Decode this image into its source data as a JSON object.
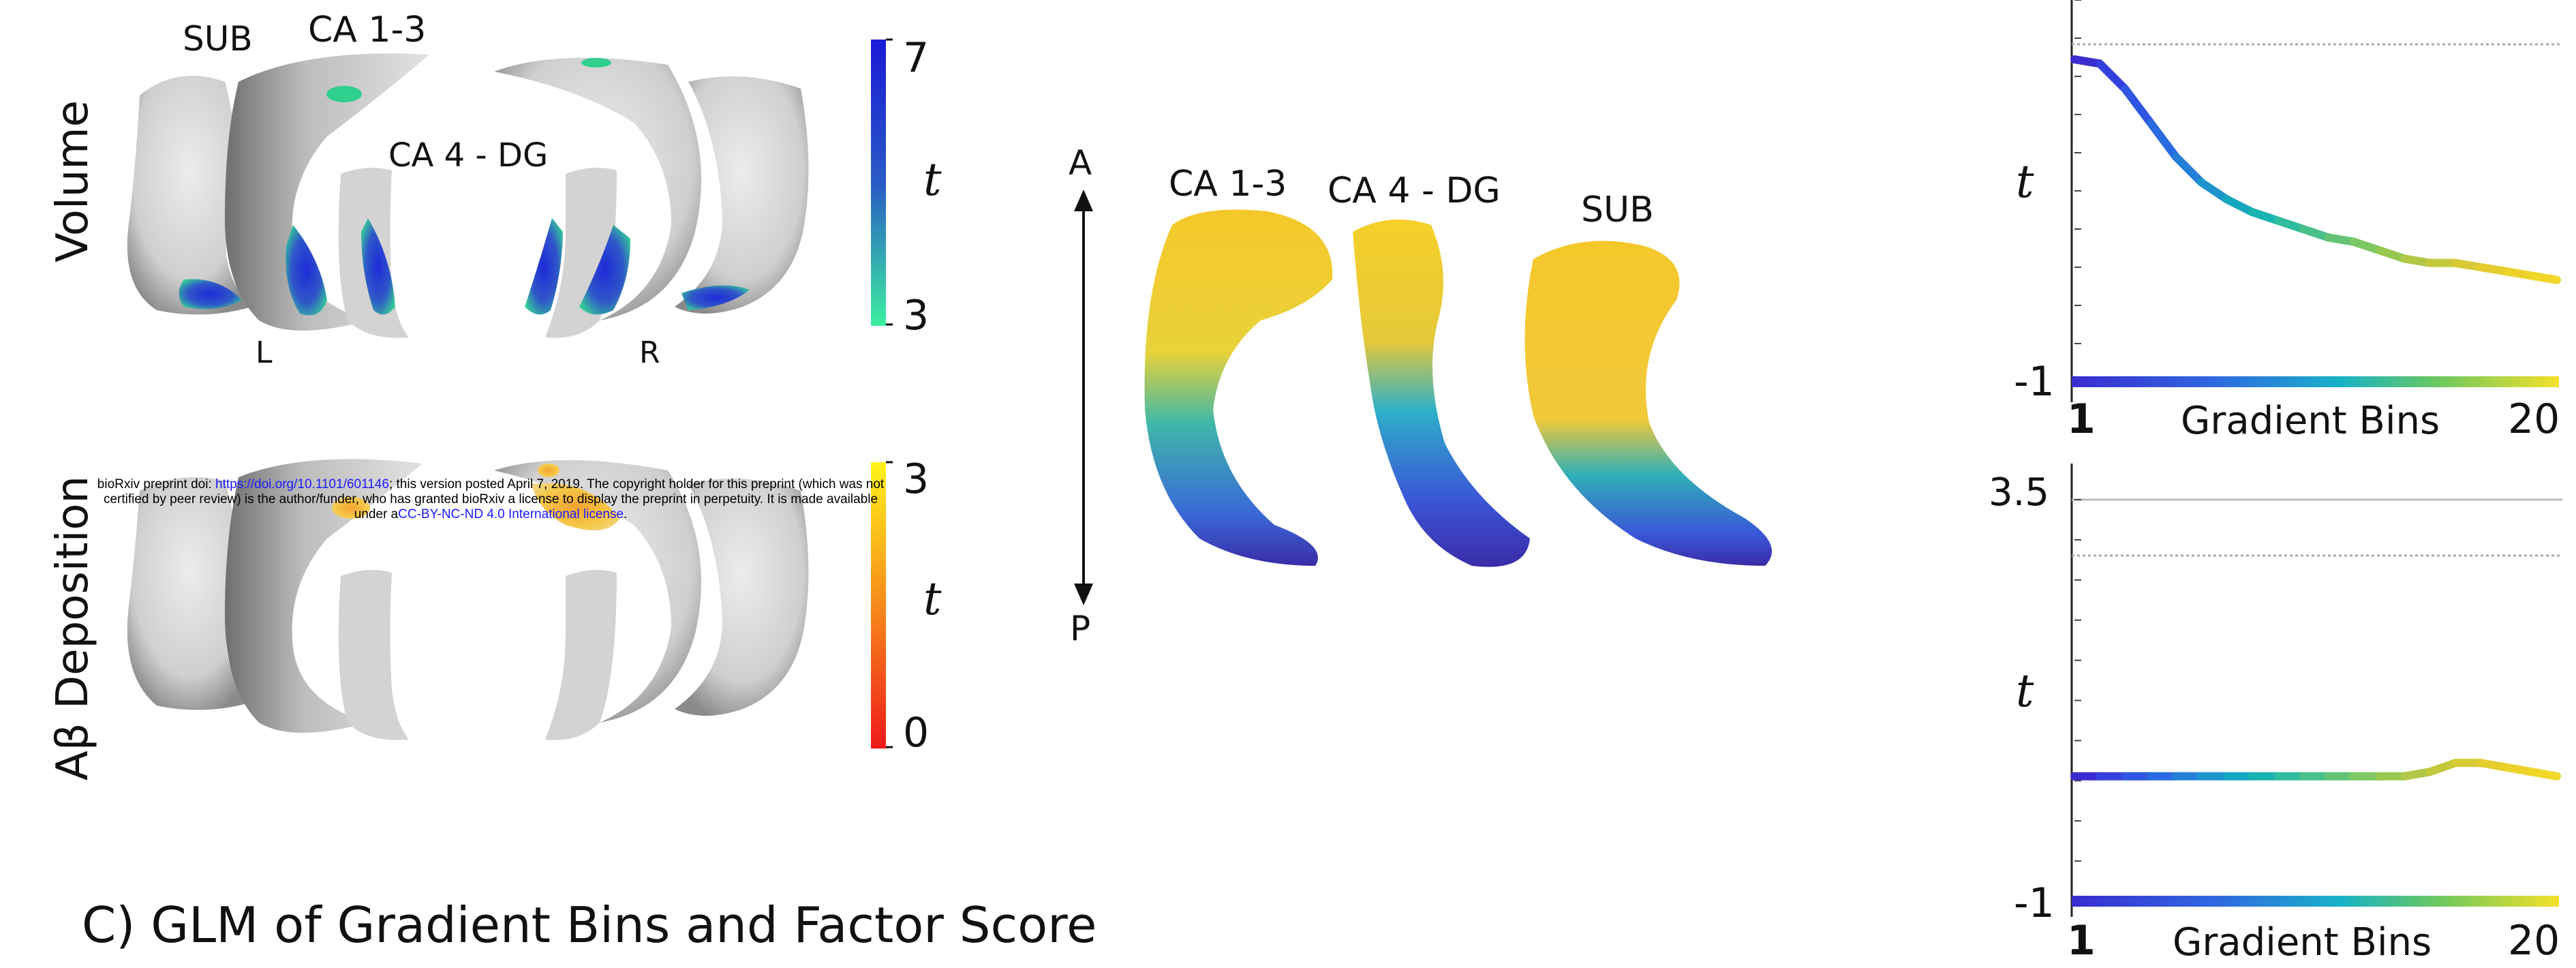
{
  "left_panel": {
    "row1_label": "Volume",
    "row2_label": "Aβ Deposition",
    "region_labels": {
      "sub": "SUB",
      "ca13": "CA 1-3",
      "ca4dg": "CA 4 - DG",
      "left": "L",
      "right": "R"
    },
    "colorbar_volume": {
      "max": "7",
      "min": "3",
      "symbol": "t"
    },
    "colorbar_amyloid": {
      "max": "3",
      "min": "0",
      "symbol": "t"
    }
  },
  "middle_panel": {
    "axis_top": "A",
    "axis_bottom": "P",
    "labels": {
      "ca13": "CA 1-3",
      "ca4dg": "CA 4 - DG",
      "sub": "SUB"
    }
  },
  "section_title": "C) GLM of Gradient Bins and Factor Score",
  "notice": {
    "prefix": "bioRxiv preprint doi: ",
    "doi": "https://doi.org/10.1101/601146",
    "line1_rest": "; this version posted April 7, 2019. The copyright holder for this preprint (which was not",
    "line2": "certified by peer review) is the author/funder, who has granted bioRxiv a license to display the preprint in perpetuity. It is made available",
    "line3_prefix": "under a",
    "license": "CC-BY-NC-ND 4.0 International license",
    "line3_suffix": "."
  },
  "chart_data": [
    {
      "type": "line",
      "ylabel": "t",
      "xlabel": "Gradient Bins",
      "x_tick_labels": [
        "1",
        "20"
      ],
      "y_tick_labels": [
        "-1"
      ],
      "x": [
        1,
        2,
        3,
        4,
        5,
        6,
        7,
        8,
        9,
        10,
        11,
        12,
        13,
        14,
        15,
        16,
        17,
        18,
        19,
        20
      ],
      "series": [
        {
          "values": [
            6.6,
            6.5,
            5.9,
            5.1,
            4.3,
            3.7,
            3.3,
            3.0,
            2.8,
            2.6,
            2.4,
            2.3,
            2.1,
            1.9,
            1.8,
            1.8,
            1.7,
            1.6,
            1.5,
            1.4
          ]
        }
      ],
      "ylim": [
        -1,
        8
      ],
      "grid": false
    },
    {
      "type": "line",
      "ylabel": "t",
      "xlabel": "Gradient Bins",
      "x_tick_labels": [
        "1",
        "20"
      ],
      "y_tick_labels": [
        "3.5",
        "-1"
      ],
      "x": [
        1,
        2,
        3,
        4,
        5,
        6,
        7,
        8,
        9,
        10,
        11,
        12,
        13,
        14,
        15,
        16,
        17,
        18,
        19,
        20
      ],
      "series": [
        {
          "values": [
            0.4,
            0.4,
            0.4,
            0.4,
            0.4,
            0.4,
            0.4,
            0.4,
            0.4,
            0.4,
            0.4,
            0.4,
            0.4,
            0.4,
            0.45,
            0.55,
            0.55,
            0.5,
            0.45,
            0.4
          ]
        }
      ],
      "ylim": [
        -1,
        3.5
      ],
      "grid": false
    }
  ]
}
